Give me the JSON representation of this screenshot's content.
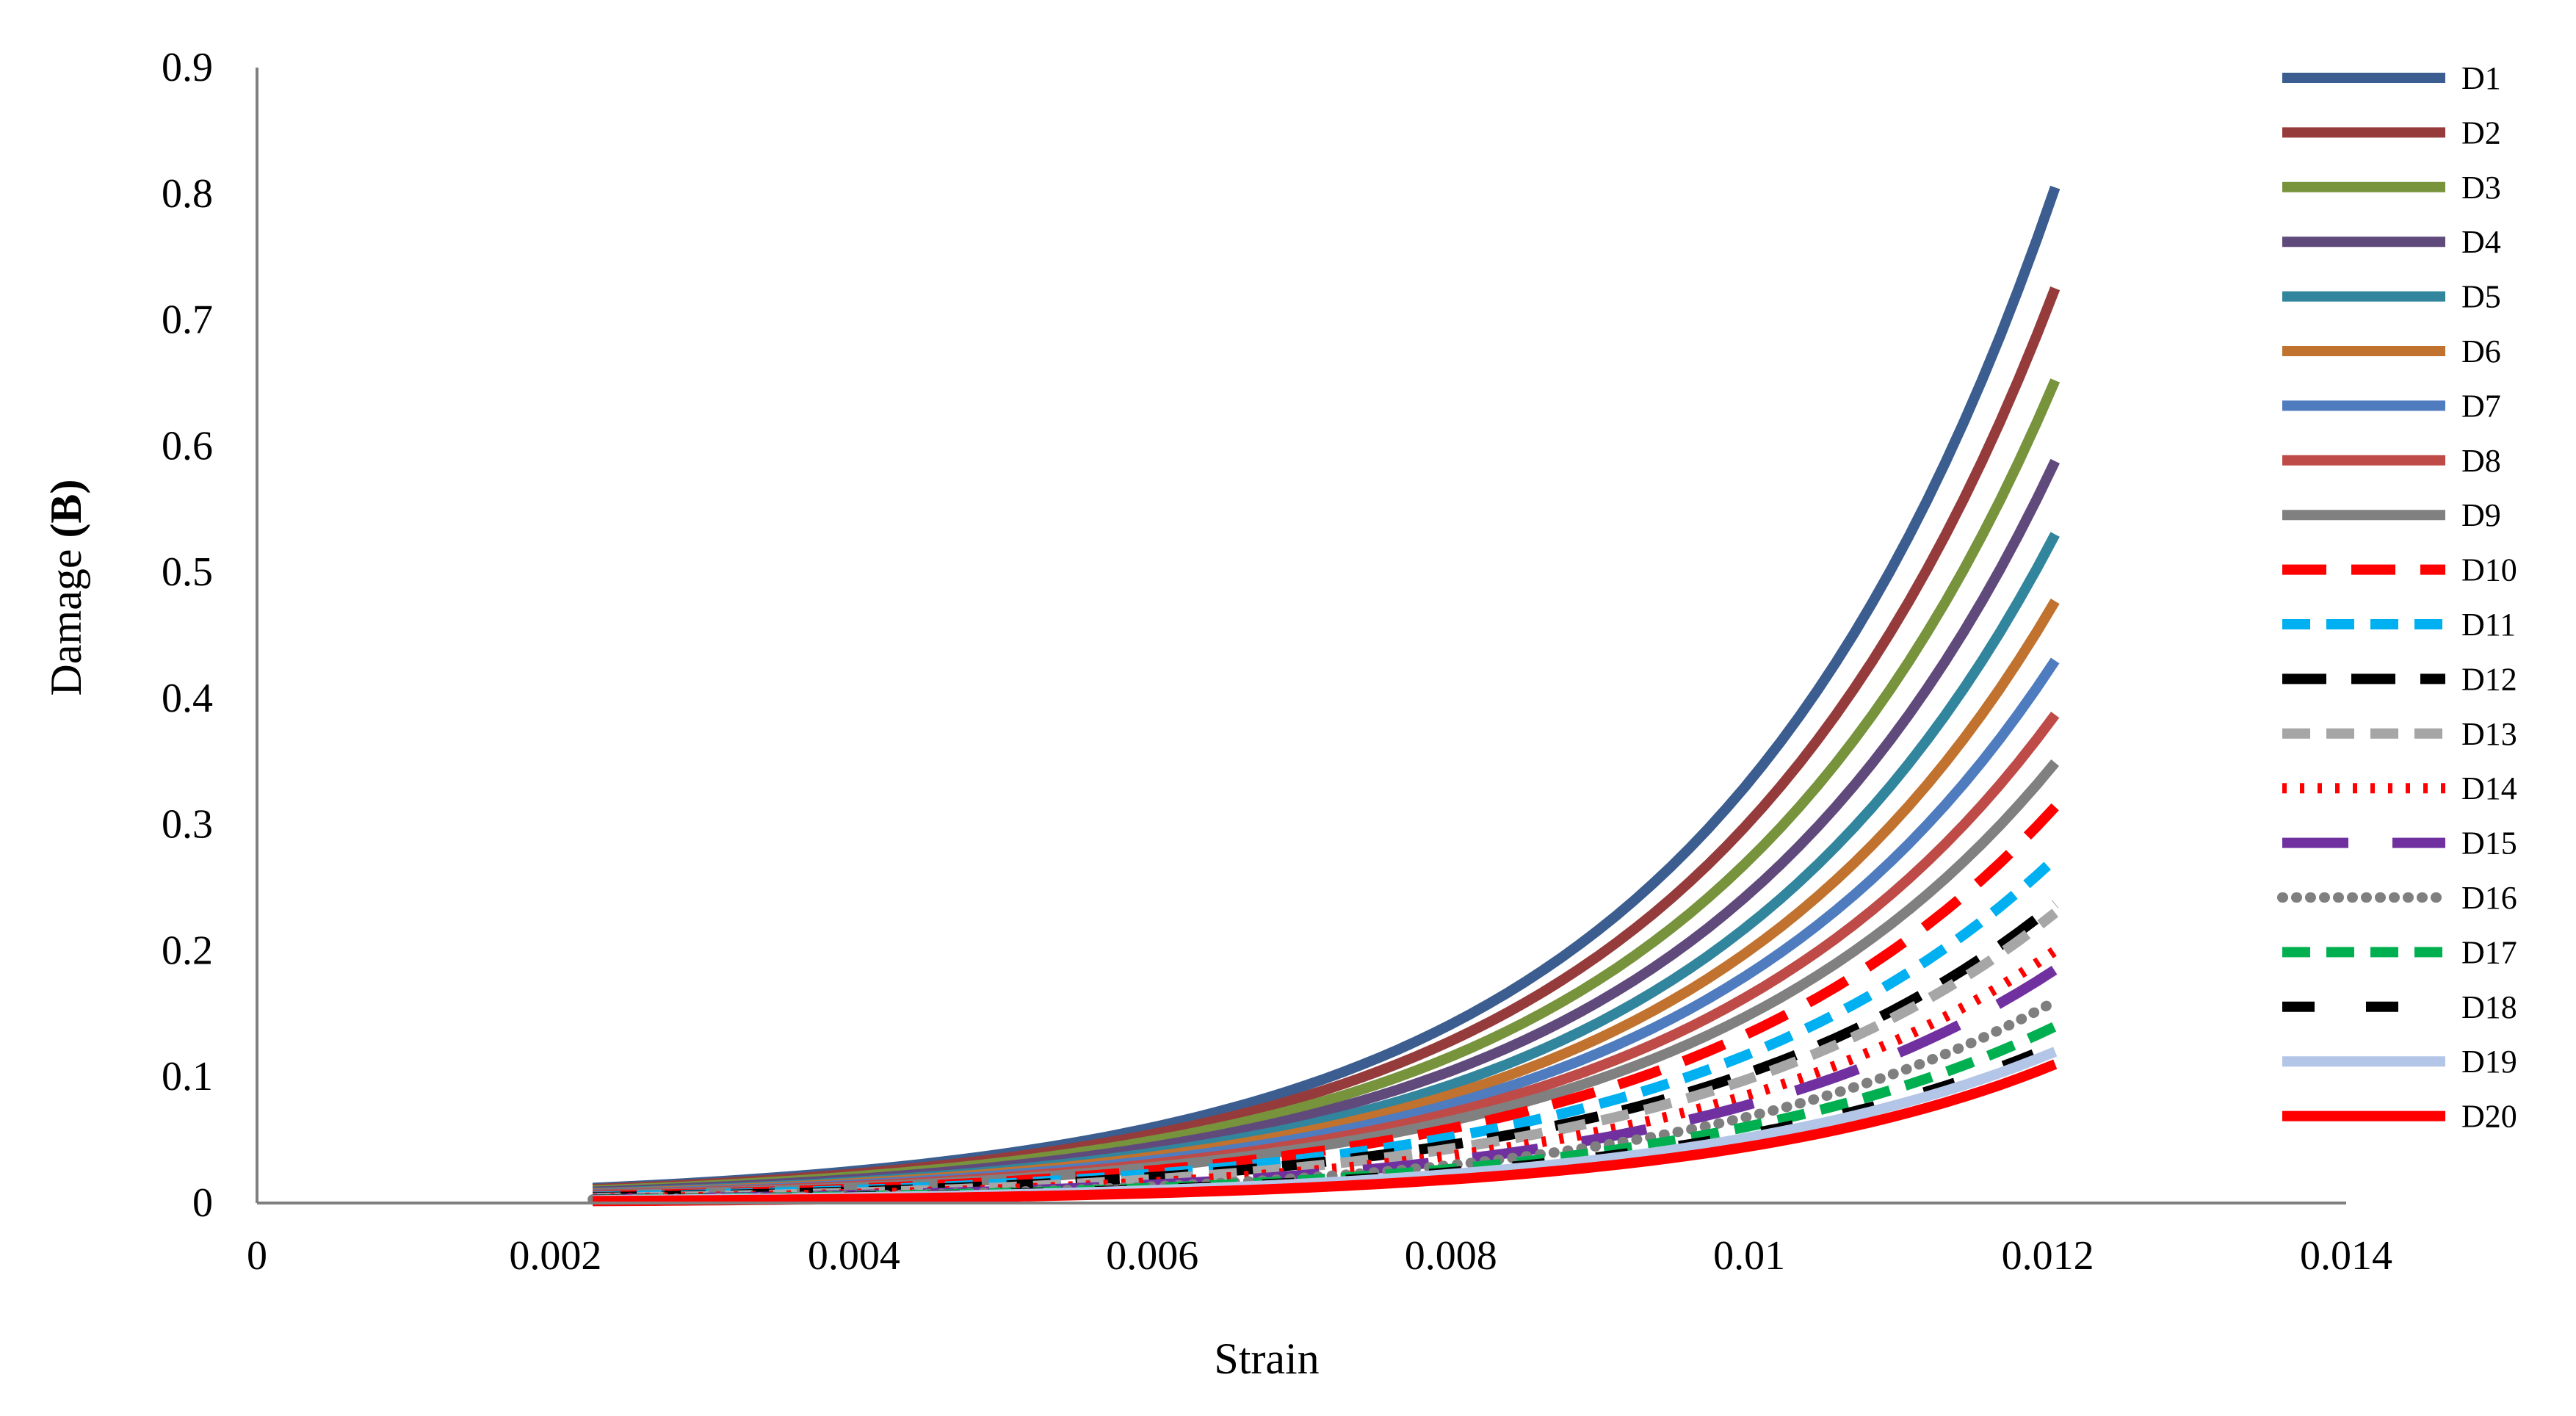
{
  "chart_data": {
    "type": "line",
    "title": "",
    "xlabel": "Strain",
    "ylabel_parts": [
      "Damage ",
      "(B)"
    ],
    "xlim": [
      0,
      0.014
    ],
    "ylim": [
      0,
      0.9
    ],
    "x_ticks": [
      0,
      0.002,
      0.004,
      0.006,
      0.008,
      0.01,
      0.012,
      0.014
    ],
    "x_tick_labels": [
      "0",
      "0.002",
      "0.004",
      "0.006",
      "0.008",
      "0.01",
      "0.012",
      "0.014"
    ],
    "y_ticks": [
      0,
      0.1,
      0.2,
      0.3,
      0.4,
      0.5,
      0.6,
      0.7,
      0.8,
      0.9
    ],
    "y_tick_labels": [
      "0",
      "0.1",
      "0.2",
      "0.3",
      "0.4",
      "0.5",
      "0.6",
      "0.7",
      "0.8",
      "0.9"
    ],
    "grid": false,
    "legend_position": "right",
    "x_start": 0.00225,
    "x_end": 0.01205,
    "series": [
      {
        "name": "D1",
        "color": "#3B5D8F",
        "style": "solid",
        "y_start": 0.012,
        "y_end": 0.805
      },
      {
        "name": "D2",
        "color": "#963B3B",
        "style": "solid",
        "y_start": 0.011,
        "y_end": 0.725
      },
      {
        "name": "D3",
        "color": "#77933C",
        "style": "solid",
        "y_start": 0.01,
        "y_end": 0.652
      },
      {
        "name": "D4",
        "color": "#604A7B",
        "style": "solid",
        "y_start": 0.009,
        "y_end": 0.588
      },
      {
        "name": "D5",
        "color": "#31859C",
        "style": "solid",
        "y_start": 0.008,
        "y_end": 0.53
      },
      {
        "name": "D6",
        "color": "#C0722E",
        "style": "solid",
        "y_start": 0.0075,
        "y_end": 0.477
      },
      {
        "name": "D7",
        "color": "#4F7BBF",
        "style": "solid",
        "y_start": 0.007,
        "y_end": 0.43
      },
      {
        "name": "D8",
        "color": "#BE4B48",
        "style": "solid",
        "y_start": 0.0065,
        "y_end": 0.387
      },
      {
        "name": "D9",
        "color": "#808080",
        "style": "solid",
        "y_start": 0.006,
        "y_end": 0.349
      },
      {
        "name": "D10",
        "color": "#FF0000",
        "style": "long-dash",
        "y_start": 0.0055,
        "y_end": 0.314
      },
      {
        "name": "D11",
        "color": "#00B0F0",
        "style": "dash",
        "y_start": 0.005,
        "y_end": 0.273
      },
      {
        "name": "D12",
        "color": "#000000",
        "style": "long-dash",
        "y_start": 0.0045,
        "y_end": 0.237
      },
      {
        "name": "D13",
        "color": "#A6A6A6",
        "style": "dash",
        "y_start": 0.004,
        "y_end": 0.23
      },
      {
        "name": "D14",
        "color": "#FF0000",
        "style": "dot",
        "y_start": 0.0035,
        "y_end": 0.2
      },
      {
        "name": "D15",
        "color": "#7030A0",
        "style": "long-dash-gap",
        "y_start": 0.003,
        "y_end": 0.185
      },
      {
        "name": "D16",
        "color": "#7F7F7F",
        "style": "round-dot",
        "y_start": 0.0028,
        "y_end": 0.16
      },
      {
        "name": "D17",
        "color": "#00B050",
        "style": "dash",
        "y_start": 0.0026,
        "y_end": 0.14
      },
      {
        "name": "D18",
        "color": "#000000",
        "style": "dash-gap",
        "y_start": 0.0024,
        "y_end": 0.125
      },
      {
        "name": "D19",
        "color": "#B4C6E7",
        "style": "solid",
        "y_start": 0.0022,
        "y_end": 0.12
      },
      {
        "name": "D20",
        "color": "#FF0000",
        "style": "solid",
        "y_start": 0.0015,
        "y_end": 0.11
      }
    ]
  }
}
